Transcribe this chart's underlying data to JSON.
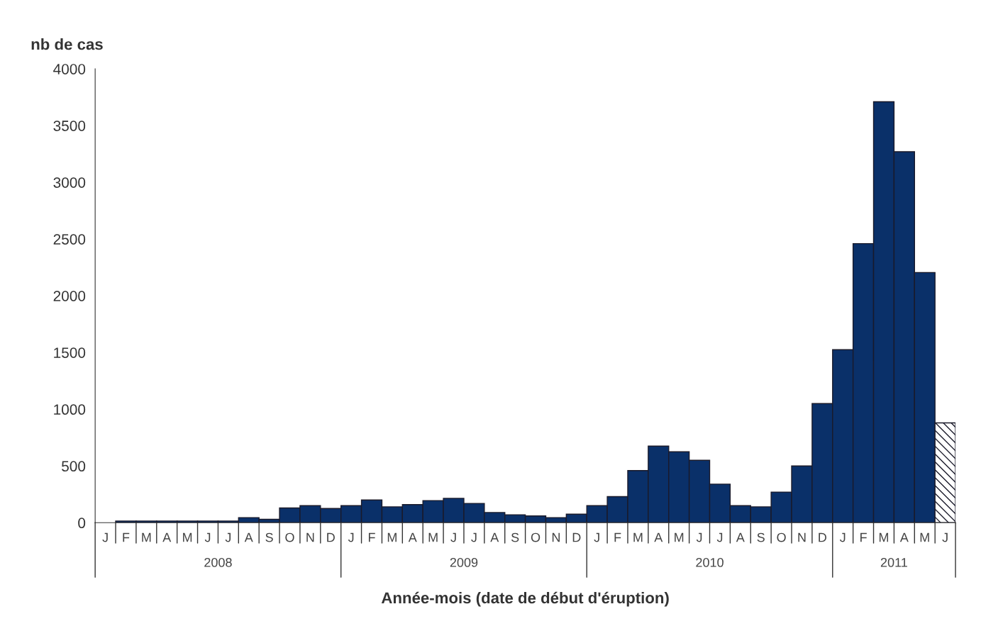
{
  "chart_data": {
    "type": "bar",
    "ylabel": "nb de cas",
    "xlabel": "Année-mois (date de début d'éruption)",
    "categories": [
      "J",
      "F",
      "M",
      "A",
      "M",
      "J",
      "J",
      "A",
      "S",
      "O",
      "N",
      "D",
      "J",
      "F",
      "M",
      "A",
      "M",
      "J",
      "J",
      "A",
      "S",
      "O",
      "N",
      "D",
      "J",
      "F",
      "M",
      "A",
      "M",
      "J",
      "J",
      "A",
      "S",
      "O",
      "N",
      "D",
      "J",
      "F",
      "M",
      "A",
      "M",
      "J"
    ],
    "values": [
      null,
      15,
      15,
      15,
      15,
      15,
      15,
      45,
      30,
      130,
      150,
      125,
      150,
      200,
      140,
      160,
      195,
      215,
      170,
      90,
      70,
      60,
      45,
      75,
      150,
      230,
      460,
      675,
      625,
      550,
      340,
      150,
      140,
      270,
      500,
      1050,
      1525,
      2460,
      3710,
      3270,
      2205,
      880
    ],
    "colors": [
      "#0a3069",
      "#0a3069",
      "#0a3069",
      "#0a3069",
      "#0a3069",
      "#0a3069",
      "#0a3069",
      "#0a3069",
      "#0a3069",
      "#0a3069",
      "#0a3069",
      "#0a3069",
      "#0a3069",
      "#0a3069",
      "#0a3069",
      "#0a3069",
      "#0a3069",
      "#0a3069",
      "#0a3069",
      "#0a3069",
      "#0a3069",
      "#0a3069",
      "#0a3069",
      "#0a3069",
      "#0a3069",
      "#0a3069",
      "#0a3069",
      "#0a3069",
      "#0a3069",
      "#0a3069",
      "#0a3069",
      "#0a3069",
      "#0a3069",
      "#0a3069",
      "#0a3069",
      "#0a3069",
      "#0a3069",
      "#0a3069",
      "#0a3069",
      "#0a3069",
      "#0a3069",
      "#1a1a2a"
    ],
    "annotations": [
      "2008",
      "2009",
      "2010",
      "2011"
    ],
    "ylim": [
      0,
      4000
    ],
    "yticks": [
      0,
      500,
      1000,
      1500,
      2000,
      2500,
      3000,
      3500,
      4000
    ],
    "grid": false
  }
}
